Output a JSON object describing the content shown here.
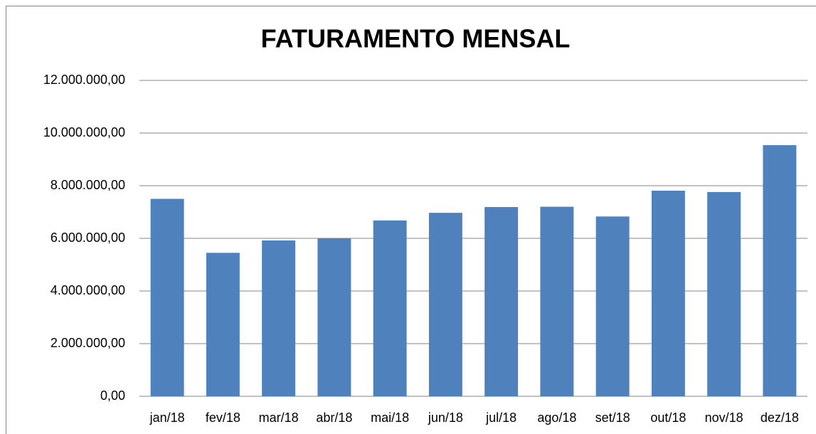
{
  "chart_data": {
    "type": "bar",
    "title": "FATURAMENTO MENSAL",
    "categories": [
      "jan/18",
      "fev/18",
      "mar/18",
      "abr/18",
      "mai/18",
      "jun/18",
      "jul/18",
      "ago/18",
      "set/18",
      "out/18",
      "nov/18",
      "dez/18"
    ],
    "values": [
      7500000,
      5450000,
      5920000,
      6000000,
      6680000,
      6970000,
      7190000,
      7200000,
      6830000,
      7810000,
      7760000,
      9540000
    ],
    "color": "#4f81bd",
    "ylim": [
      0,
      12000000
    ],
    "yticks": [
      {
        "value": 0,
        "label": "0,00"
      },
      {
        "value": 2000000,
        "label": "2.000.000,00"
      },
      {
        "value": 4000000,
        "label": "4.000.000,00"
      },
      {
        "value": 6000000,
        "label": "6.000.000,00"
      },
      {
        "value": 8000000,
        "label": "8.000.000,00"
      },
      {
        "value": 10000000,
        "label": "10.000.000,00"
      },
      {
        "value": 12000000,
        "label": "12.000.000,00"
      }
    ],
    "grid": true
  }
}
